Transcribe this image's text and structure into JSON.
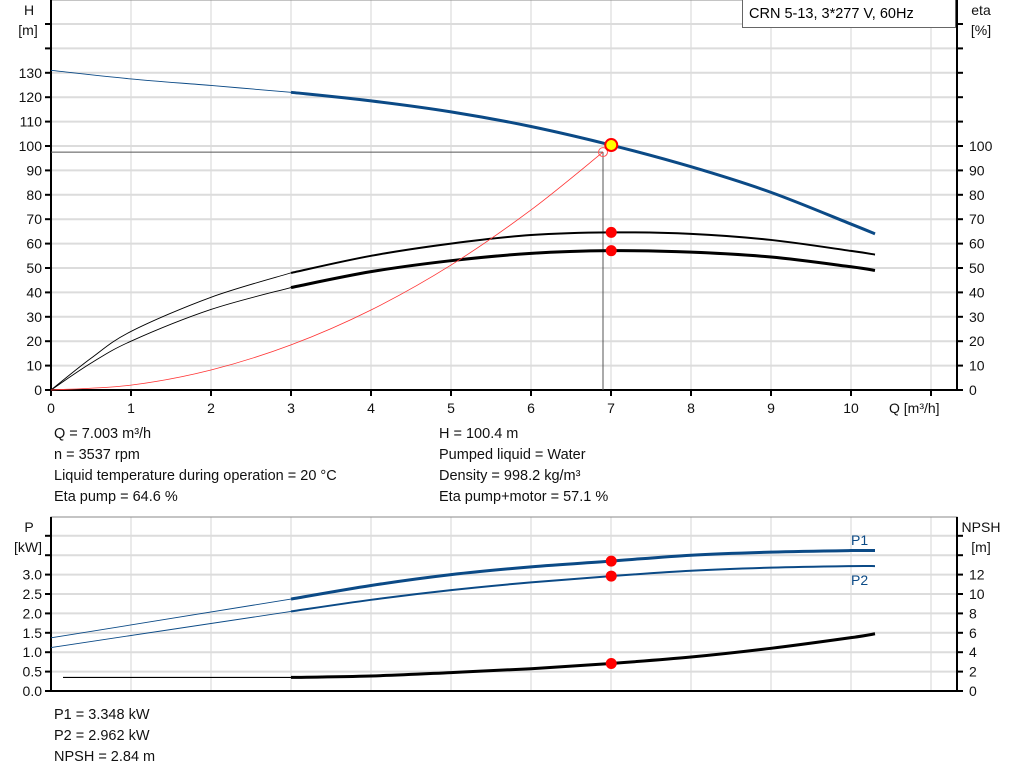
{
  "title": "CRN 5-13, 3*277 V, 60Hz",
  "chart_data": [
    {
      "type": "line",
      "title": "CRN 5-13, 3*277 V, 60Hz",
      "xlabel": "Q [m³/h]",
      "ylabel_left": [
        "H",
        "[m]"
      ],
      "ylabel_right": [
        "eta",
        "[%]"
      ],
      "xlim": [
        0,
        11
      ],
      "ylim_left": [
        0,
        160
      ],
      "ylim_right": [
        0,
        160
      ],
      "x_ticks": [
        "0",
        "1",
        "2",
        "3",
        "4",
        "5",
        "6",
        "7",
        "8",
        "9",
        "10"
      ],
      "y_ticks_left": [
        "0",
        "10",
        "20",
        "30",
        "40",
        "50",
        "60",
        "70",
        "80",
        "90",
        "100",
        "110",
        "120",
        "130"
      ],
      "y_ticks_right": [
        "0",
        "10",
        "20",
        "30",
        "40",
        "50",
        "60",
        "70",
        "80",
        "90",
        "100"
      ],
      "grid": true,
      "series": [
        {
          "key": "H",
          "color": "#0b4a86",
          "axis": "left",
          "thin": [
            [
              0,
              131
            ],
            [
              1,
              127.5
            ],
            [
              2,
              124.8
            ],
            [
              3,
              122
            ]
          ],
          "thick": [
            [
              3,
              122
            ],
            [
              4,
              118.5
            ],
            [
              5,
              114
            ],
            [
              6,
              108
            ],
            [
              7,
              100.4
            ],
            [
              8,
              91.5
            ],
            [
              9,
              81
            ],
            [
              10,
              68
            ],
            [
              10.3,
              64
            ]
          ]
        },
        {
          "key": "eta_pump",
          "color": "#000000",
          "axis": "right",
          "thin": [
            [
              0,
              0
            ],
            [
              0.5,
              13
            ],
            [
              1,
              24
            ],
            [
              2,
              38
            ],
            [
              3,
              48
            ]
          ],
          "thick": [
            [
              3,
              48
            ],
            [
              4,
              55
            ],
            [
              5,
              60
            ],
            [
              6,
              63.5
            ],
            [
              7,
              64.6
            ],
            [
              8,
              64
            ],
            [
              9,
              61.5
            ],
            [
              10,
              57
            ],
            [
              10.3,
              55.5
            ]
          ]
        },
        {
          "key": "eta_pump_motor",
          "color": "#000000",
          "axis": "right",
          "thin": [
            [
              0,
              0
            ],
            [
              0.5,
              11
            ],
            [
              1,
              20
            ],
            [
              2,
              33
            ],
            [
              3,
              42
            ]
          ],
          "thick": [
            [
              3,
              42
            ],
            [
              4,
              48.5
            ],
            [
              5,
              53
            ],
            [
              6,
              56
            ],
            [
              7,
              57.1
            ],
            [
              8,
              56.5
            ],
            [
              9,
              54.5
            ],
            [
              10,
              50.5
            ],
            [
              10.3,
              49
            ]
          ]
        },
        {
          "key": "system_curve",
          "color": "#ff3333",
          "axis": "left",
          "thin": [
            [
              0,
              0
            ],
            [
              1,
              2
            ],
            [
              2,
              8.2
            ],
            [
              3,
              18.5
            ],
            [
              4,
              32.8
            ],
            [
              5,
              51.2
            ],
            [
              6,
              73.8
            ],
            [
              6.9,
              97.5
            ]
          ]
        }
      ],
      "operating_point": {
        "Q": 7.003,
        "H": 100.4,
        "color": "#ffff00"
      },
      "duty_point": {
        "Q": 6.9,
        "H": 97.5
      },
      "markers": [
        {
          "Q": 7.003,
          "value": 64.6
        },
        {
          "Q": 7.003,
          "value": 57.1
        }
      ]
    },
    {
      "type": "line",
      "ylabel_left": [
        "P",
        "[kW]"
      ],
      "ylabel_right": [
        "NPSH",
        "[m]"
      ],
      "xlim": [
        0,
        11
      ],
      "ylim_left": [
        0,
        4.5
      ],
      "ylim_right": [
        0,
        18
      ],
      "y_ticks_left": [
        "0.0",
        "0.5",
        "1.0",
        "1.5",
        "2.0",
        "2.5",
        "3.0"
      ],
      "y_ticks_right": [
        "0",
        "2",
        "4",
        "6",
        "8",
        "10",
        "12"
      ],
      "grid": true,
      "series": [
        {
          "name": "P1",
          "color": "#0b4a86",
          "axis": "left",
          "thin": [
            [
              0,
              1.37
            ],
            [
              3,
              2.37
            ]
          ],
          "thick": [
            [
              3,
              2.37
            ],
            [
              4,
              2.72
            ],
            [
              5,
              3.0
            ],
            [
              6,
              3.2
            ],
            [
              7,
              3.348
            ],
            [
              8,
              3.5
            ],
            [
              9,
              3.58
            ],
            [
              10,
              3.62
            ],
            [
              10.3,
              3.62
            ]
          ]
        },
        {
          "name": "P2",
          "color": "#0b4a86",
          "axis": "left",
          "thin": [
            [
              0,
              1.12
            ],
            [
              3,
              2.05
            ]
          ],
          "thick": [
            [
              3,
              2.05
            ],
            [
              4,
              2.35
            ],
            [
              5,
              2.6
            ],
            [
              6,
              2.8
            ],
            [
              7,
              2.962
            ],
            [
              8,
              3.1
            ],
            [
              9,
              3.18
            ],
            [
              10,
              3.22
            ],
            [
              10.3,
              3.22
            ]
          ]
        },
        {
          "key": "NPSH",
          "color": "#000000",
          "axis": "right",
          "thin": [
            [
              0.15,
              1.4
            ],
            [
              3,
              1.4
            ]
          ],
          "thick": [
            [
              3,
              1.4
            ],
            [
              4,
              1.55
            ],
            [
              5,
              1.9
            ],
            [
              6,
              2.3
            ],
            [
              7,
              2.84
            ],
            [
              8,
              3.5
            ],
            [
              9,
              4.4
            ],
            [
              10,
              5.5
            ],
            [
              10.3,
              5.9
            ]
          ]
        }
      ],
      "markers_left": [
        {
          "Q": 7.003,
          "value": 3.348
        },
        {
          "Q": 7.003,
          "value": 2.962
        }
      ],
      "markers_right": [
        {
          "Q": 7.003,
          "value": 2.84
        }
      ]
    }
  ],
  "info_top_left": [
    "Q = 7.003 m³/h",
    "n = 3537 rpm",
    "Liquid temperature during operation = 20 °C",
    "Eta pump = 64.6 %"
  ],
  "info_top_right": [
    "H = 100.4 m",
    "Pumped liquid = Water",
    "Density = 998.2 kg/m³",
    "Eta pump+motor = 57.1 %"
  ],
  "info_bottom": [
    "P1 = 3.348 kW",
    "P2 = 2.962 kW",
    "NPSH = 2.84 m"
  ]
}
